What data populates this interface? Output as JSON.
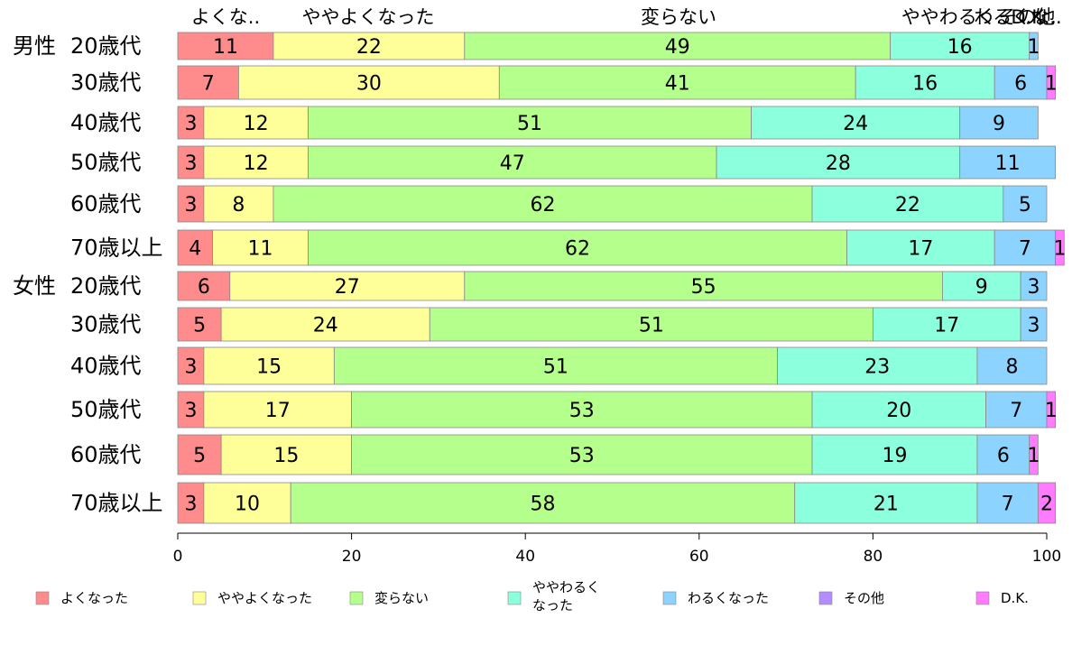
{
  "chart_data": {
    "type": "bar",
    "orientation": "horizontal",
    "stacked": true,
    "xlim": [
      0,
      100
    ],
    "xticks": [
      "0",
      "20",
      "40",
      "60",
      "80",
      "100"
    ],
    "grid": false,
    "legend_position": "bottom",
    "top_labels": [
      "よくな..",
      "ややよくなった",
      "変らない",
      "ややわるく..",
      "わるくな..",
      "その他",
      "D.K."
    ],
    "groups": [
      "男性",
      "女性"
    ],
    "categories": [
      {
        "group": "男性",
        "label": "20歳代"
      },
      {
        "group": "",
        "label": "30歳代"
      },
      {
        "group": "",
        "label": "40歳代"
      },
      {
        "group": "",
        "label": "50歳代"
      },
      {
        "group": "",
        "label": "60歳代"
      },
      {
        "group": "",
        "label": "70歳以上"
      },
      {
        "group": "女性",
        "label": "20歳代"
      },
      {
        "group": "",
        "label": "30歳代"
      },
      {
        "group": "",
        "label": "40歳代"
      },
      {
        "group": "",
        "label": "50歳代"
      },
      {
        "group": "",
        "label": "60歳代"
      },
      {
        "group": "",
        "label": "70歳以上"
      }
    ],
    "series": [
      {
        "name": "よくなった",
        "color": "#ff8c8c",
        "values": [
          11,
          7,
          3,
          3,
          3,
          4,
          6,
          5,
          3,
          3,
          5,
          3
        ],
        "labels": [
          "11",
          "7",
          "3",
          "3",
          "3",
          "4",
          "6",
          "5",
          "3",
          "3",
          "5",
          "3"
        ]
      },
      {
        "name": "ややよくなった",
        "color": "#ffff99",
        "values": [
          22,
          30,
          12,
          12,
          8,
          11,
          27,
          24,
          15,
          17,
          15,
          10
        ],
        "labels": [
          "22",
          "30",
          "12",
          "12",
          "8",
          "11",
          "27",
          "24",
          "15",
          "17",
          "15",
          "10"
        ]
      },
      {
        "name": "変らない",
        "color": "#b5ff8c",
        "values": [
          49,
          41,
          51,
          47,
          62,
          62,
          55,
          51,
          51,
          53,
          53,
          58
        ],
        "labels": [
          "49",
          "41",
          "51",
          "47",
          "62",
          "62",
          "55",
          "51",
          "51",
          "53",
          "53",
          "58"
        ]
      },
      {
        "name": "ややわるく\nなった",
        "color": "#8cffdc",
        "values": [
          16,
          16,
          24,
          28,
          22,
          17,
          9,
          17,
          23,
          20,
          19,
          21
        ],
        "labels": [
          "16",
          "16",
          "24",
          "28",
          "22",
          "17",
          "9",
          "17",
          "23",
          "20",
          "19",
          "21"
        ]
      },
      {
        "name": "わるくなった",
        "color": "#8cd4ff",
        "values": [
          1,
          6,
          9,
          11,
          5,
          7,
          3,
          3,
          8,
          7,
          6,
          7
        ],
        "labels": [
          "1",
          "6",
          "9",
          "11",
          "5",
          "7",
          "3",
          "3",
          "8",
          "7",
          "6",
          "7"
        ]
      },
      {
        "name": "その他",
        "color": "#b38cff",
        "values": [
          0,
          0,
          0,
          0,
          0,
          0,
          0,
          0,
          0,
          0,
          0,
          0
        ],
        "labels": [
          "",
          "",
          "",
          "",
          "",
          "",
          "",
          "",
          "",
          "",
          "",
          ""
        ]
      },
      {
        "name": "D.K.",
        "color": "#ff7bff",
        "values": [
          0,
          1,
          0,
          0,
          0,
          1,
          0,
          0,
          0,
          1,
          1,
          2
        ],
        "labels": [
          "",
          "1",
          "",
          "",
          "",
          "1",
          "",
          "",
          "",
          "1",
          "1",
          "2"
        ]
      }
    ]
  }
}
